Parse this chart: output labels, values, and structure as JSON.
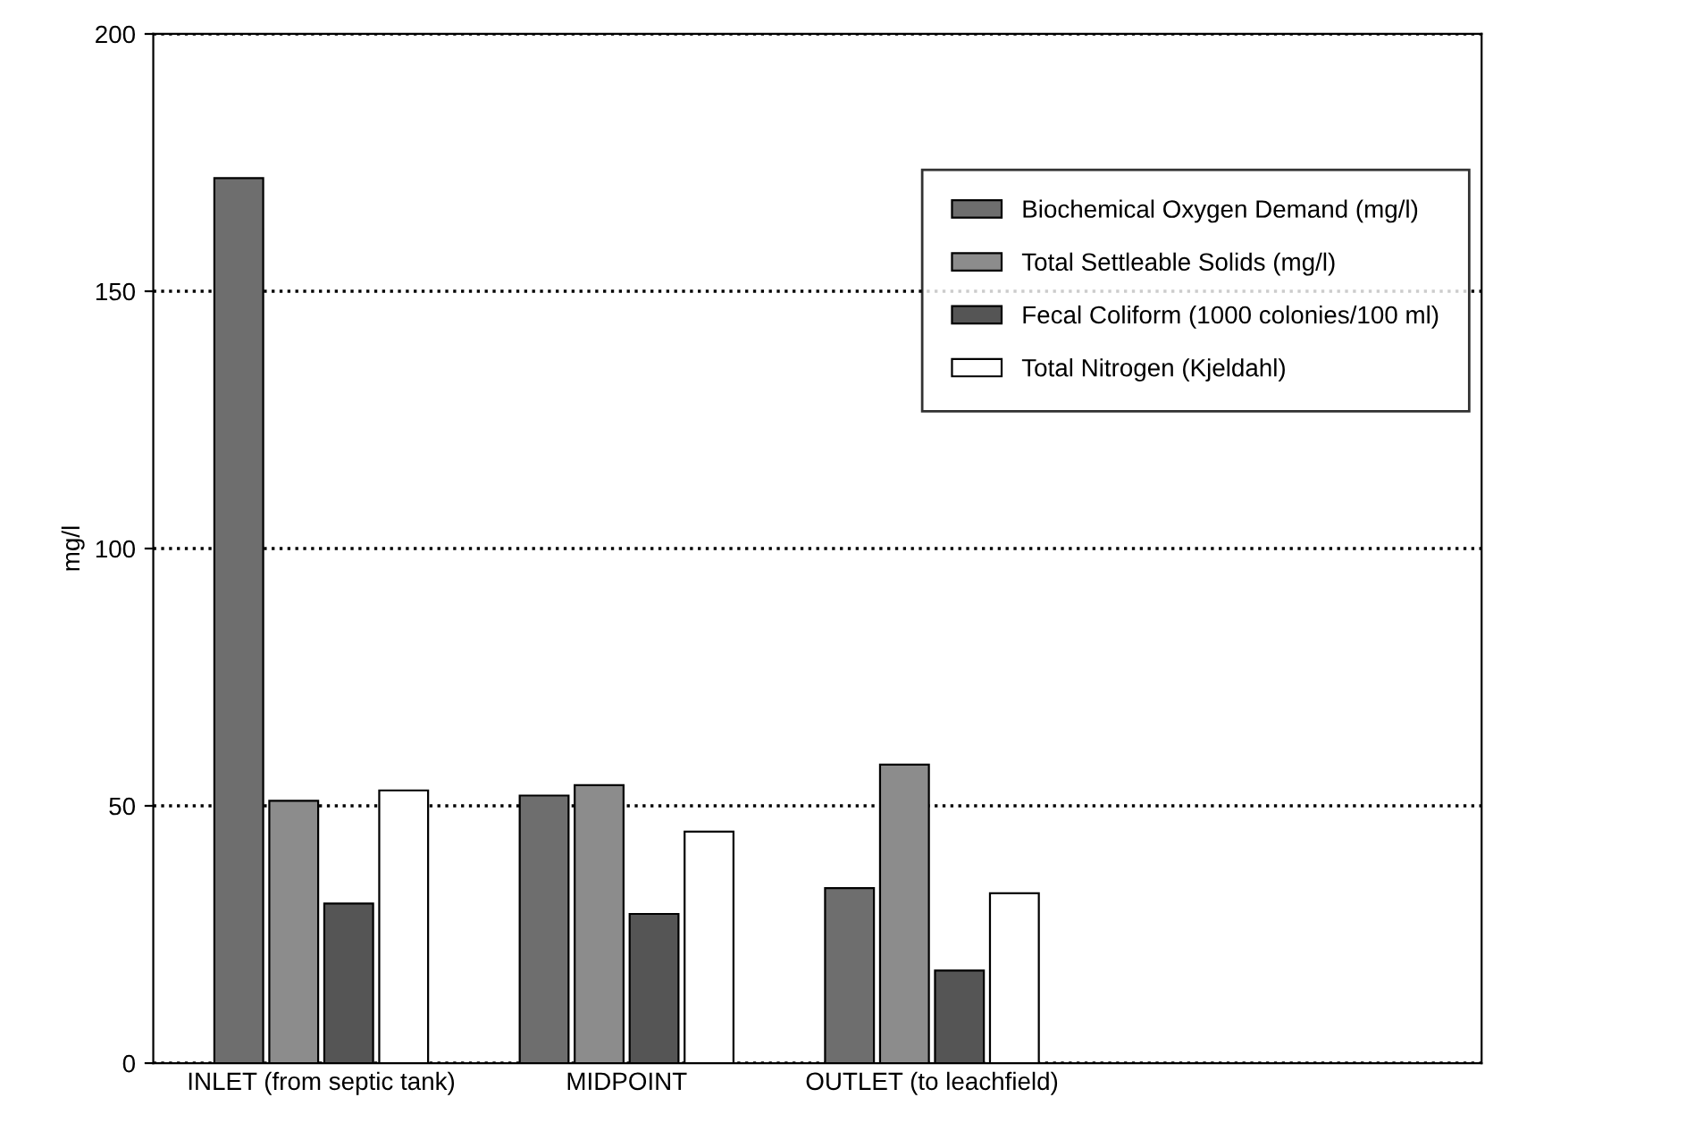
{
  "chart_data": {
    "type": "bar",
    "ylabel": "mg/l",
    "categories": [
      "INLET (from septic tank)",
      "MIDPOINT",
      "OUTLET (to leachfield)"
    ],
    "series": [
      {
        "name": "Biochemical Oxygen Demand (mg/l)",
        "color": "#6e6e6e",
        "values": [
          172,
          52,
          34
        ]
      },
      {
        "name": "Total Settleable Solids (mg/l)",
        "color": "#8c8c8c",
        "values": [
          51,
          54,
          58
        ]
      },
      {
        "name": "Fecal Coliform (1000 colonies/100 ml)",
        "color": "#555555",
        "values": [
          31,
          29,
          18
        ]
      },
      {
        "name": "Total Nitrogen (Kjeldahl)",
        "color": "#ffffff",
        "values": [
          53,
          45,
          33
        ]
      }
    ],
    "ylim": [
      0,
      200
    ],
    "yticks": [
      0,
      50,
      100,
      150,
      200
    ],
    "grid": "y",
    "legend": "top right"
  }
}
